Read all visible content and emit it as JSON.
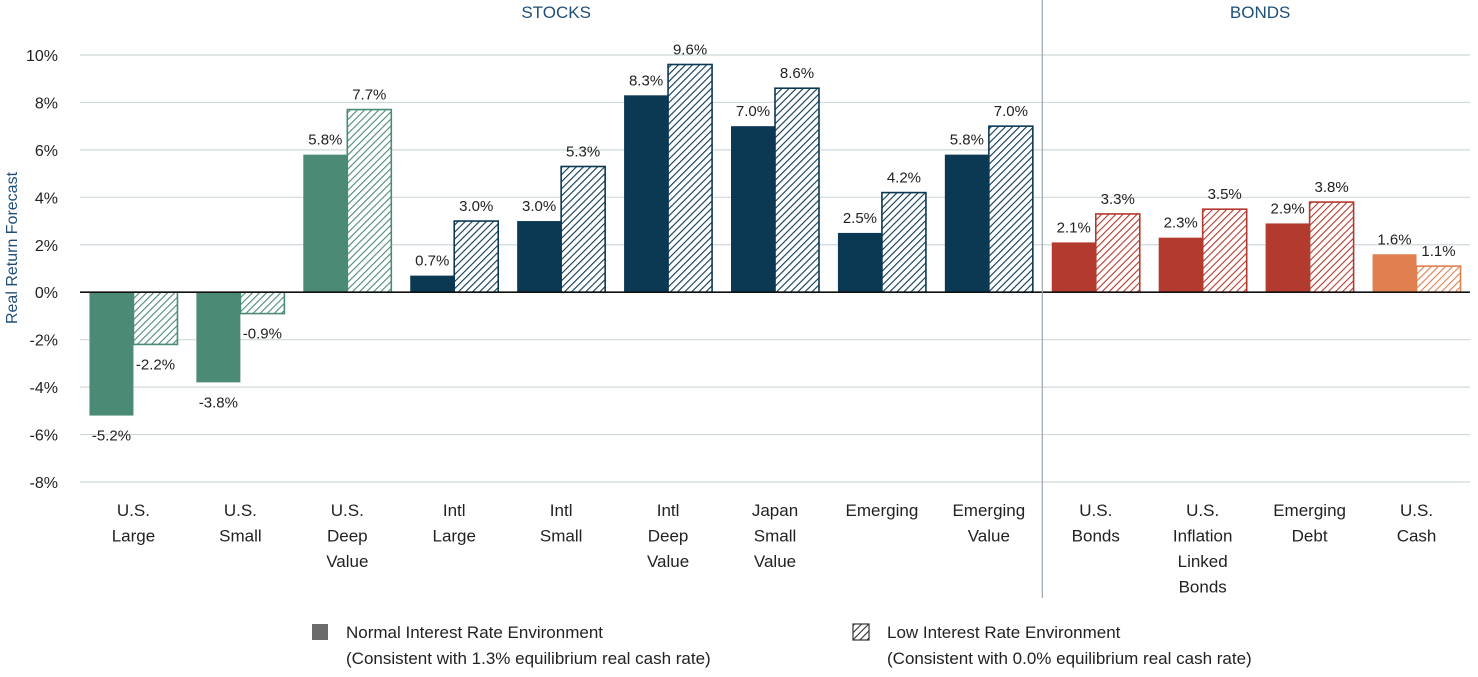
{
  "chart_data": {
    "type": "bar",
    "ylabel": "Real Return Forecast",
    "ylim": [
      -8,
      10
    ],
    "yticks": [
      10,
      8,
      6,
      4,
      2,
      0,
      -2,
      -4,
      -6,
      -8
    ],
    "ytick_labels": [
      "10%",
      "8%",
      "6%",
      "4%",
      "2%",
      "0%",
      "-2%",
      "-4%",
      "-6%",
      "-8%"
    ],
    "grid": true,
    "sections": [
      {
        "name": "STOCKS",
        "categories": 9
      },
      {
        "name": "BONDS",
        "categories": 4
      }
    ],
    "categories": [
      [
        "U.S.",
        "Large"
      ],
      [
        "U.S.",
        "Small"
      ],
      [
        "U.S.",
        "Deep",
        "Value"
      ],
      [
        "Intl",
        "Large"
      ],
      [
        "Intl",
        "Small"
      ],
      [
        "Intl",
        "Deep",
        "Value"
      ],
      [
        "Japan",
        "Small",
        "Value"
      ],
      [
        "Emerging"
      ],
      [
        "Emerging",
        "Value"
      ],
      [
        "U.S.",
        "Bonds"
      ],
      [
        "U.S.",
        "Inflation",
        "Linked",
        "Bonds"
      ],
      [
        "Emerging",
        "Debt"
      ],
      [
        "U.S.",
        "Cash"
      ]
    ],
    "category_colors": [
      "#4b8b76",
      "#4b8b76",
      "#4b8b76",
      "#0b3954",
      "#0b3954",
      "#0b3954",
      "#0b3954",
      "#0b3954",
      "#0b3954",
      "#b33a2f",
      "#b33a2f",
      "#b33a2f",
      "#e07f4f"
    ],
    "series": [
      {
        "name": "Normal Interest Rate Environment",
        "sublabel": "(Consistent with 1.3% equilibrium real cash rate)",
        "pattern": "solid",
        "values": [
          -5.2,
          -3.8,
          5.8,
          0.7,
          3.0,
          8.3,
          7.0,
          2.5,
          5.8,
          2.1,
          2.3,
          2.9,
          1.6
        ],
        "labels": [
          "-5.2%",
          "-3.8%",
          "5.8%",
          "0.7%",
          "3.0%",
          "8.3%",
          "7.0%",
          "2.5%",
          "5.8%",
          "2.1%",
          "2.3%",
          "2.9%",
          "1.6%"
        ]
      },
      {
        "name": "Low Interest Rate Environment",
        "sublabel": "(Consistent with 0.0% equilibrium real cash rate)",
        "pattern": "hatched",
        "values": [
          -2.2,
          -0.9,
          7.7,
          3.0,
          5.3,
          9.6,
          8.6,
          4.2,
          7.0,
          3.3,
          3.5,
          3.8,
          1.1
        ],
        "labels": [
          "-2.2%",
          "-0.9%",
          "7.7%",
          "3.0%",
          "5.3%",
          "9.6%",
          "8.6%",
          "4.2%",
          "7.0%",
          "3.3%",
          "3.5%",
          "3.8%",
          "1.1%"
        ]
      }
    ],
    "legend_position": "bottom",
    "colors": {
      "grid": "#cfd8dc",
      "axis_text": "#222222",
      "section_title": "#1f4e79",
      "ylabel": "#1f4e79",
      "divider": "#9aa5ad",
      "legend_solid": "#6b6b6b",
      "legend_hatch": "#333333"
    }
  }
}
